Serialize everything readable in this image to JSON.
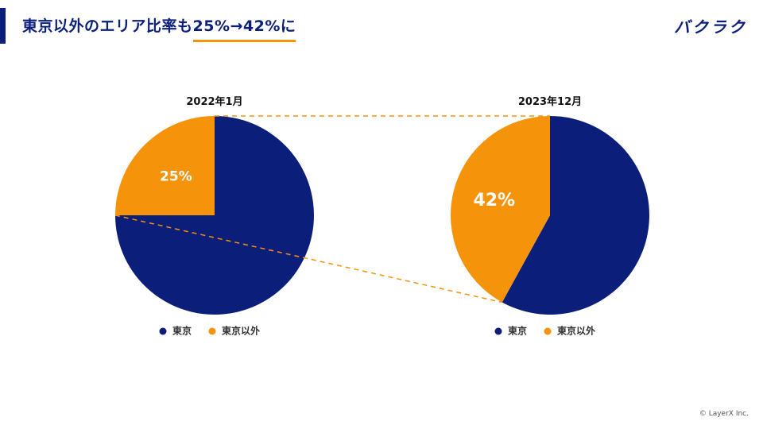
{
  "header": {
    "title_prefix": "東京以外のエリア比率も",
    "title_highlight": "25%→42%に",
    "logo": "バクラク"
  },
  "footer": {
    "copyright": "© LayerX Inc."
  },
  "colors": {
    "tokyo": "#0b1e7a",
    "outside": "#f5930a",
    "title": "#0b1e7a"
  },
  "chart_data": [
    {
      "type": "pie",
      "title": "2022年1月",
      "slices": [
        {
          "label": "東京",
          "value": 75
        },
        {
          "label": "東京以外",
          "value": 25,
          "data_label": "25%"
        }
      ],
      "legend": [
        "東京",
        "東京以外"
      ]
    },
    {
      "type": "pie",
      "title": "2023年12月",
      "slices": [
        {
          "label": "東京",
          "value": 58
        },
        {
          "label": "東京以外",
          "value": 42,
          "data_label": "42%"
        }
      ],
      "legend": [
        "東京",
        "東京以外"
      ]
    }
  ]
}
